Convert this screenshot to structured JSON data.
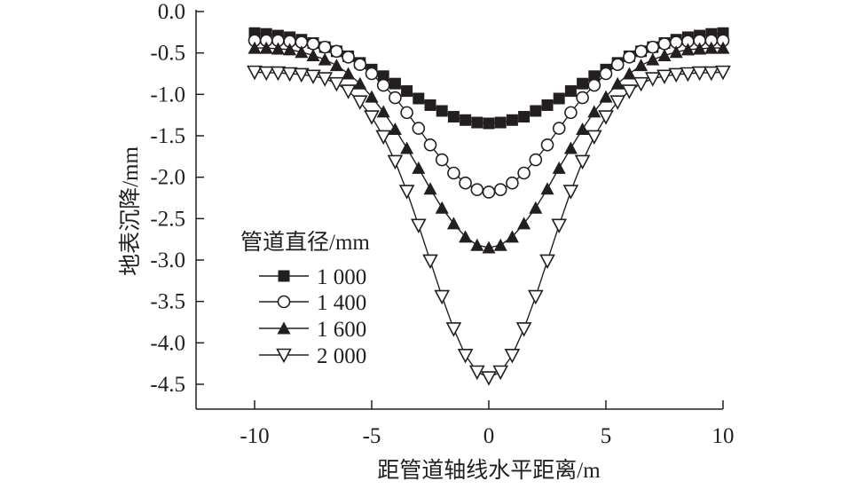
{
  "chart_data": {
    "type": "line",
    "title": "",
    "xlabel": "距管道轴线水平距离/m",
    "ylabel": "地表沉降/mm",
    "xlim": [
      -12.5,
      10
    ],
    "ylim": [
      -4.8,
      0
    ],
    "xticks": [
      -10,
      -5,
      0,
      5,
      10
    ],
    "xtick_labels": [
      "-10",
      "-5",
      "0",
      "5",
      "10"
    ],
    "yticks": [
      0,
      -0.5,
      -1,
      -1.5,
      -2,
      -2.5,
      -3,
      -3.5,
      -4,
      -4.5
    ],
    "ytick_labels": [
      "0.0",
      "-0.5",
      "-1.0",
      "-1.5",
      "-2.0",
      "-2.5",
      "-3.0",
      "-3.5",
      "-4.0",
      "-4.5"
    ],
    "grid": false,
    "legend": {
      "title": "管道直径/mm",
      "placement": "left-middle"
    },
    "x": [
      -10,
      -9.5,
      -9,
      -8.5,
      -8,
      -7.5,
      -7,
      -6.5,
      -6,
      -5.5,
      -5,
      -4.5,
      -4,
      -3.5,
      -3,
      -2.5,
      -2,
      -1.5,
      -1,
      -0.5,
      0,
      0.5,
      1,
      1.5,
      2,
      2.5,
      3,
      3.5,
      4,
      4.5,
      5,
      5.5,
      6,
      6.5,
      7,
      7.5,
      8,
      8.5,
      9,
      9.5,
      10
    ],
    "series": [
      {
        "name": "1 000",
        "marker": "square-filled",
        "values": [
          -0.26,
          -0.27,
          -0.29,
          -0.31,
          -0.34,
          -0.38,
          -0.43,
          -0.48,
          -0.54,
          -0.62,
          -0.7,
          -0.78,
          -0.87,
          -0.96,
          -1.05,
          -1.13,
          -1.2,
          -1.27,
          -1.31,
          -1.34,
          -1.35,
          -1.34,
          -1.31,
          -1.27,
          -1.2,
          -1.13,
          -1.05,
          -0.96,
          -0.87,
          -0.78,
          -0.7,
          -0.62,
          -0.54,
          -0.48,
          -0.43,
          -0.38,
          -0.34,
          -0.31,
          -0.29,
          -0.27,
          -0.26
        ]
      },
      {
        "name": "1 400",
        "marker": "circle-open",
        "values": [
          -0.35,
          -0.35,
          -0.35,
          -0.36,
          -0.37,
          -0.39,
          -0.43,
          -0.48,
          -0.55,
          -0.64,
          -0.75,
          -0.89,
          -1.04,
          -1.22,
          -1.41,
          -1.61,
          -1.79,
          -1.95,
          -2.07,
          -2.15,
          -2.18,
          -2.15,
          -2.07,
          -1.95,
          -1.79,
          -1.61,
          -1.41,
          -1.22,
          -1.04,
          -0.89,
          -0.75,
          -0.64,
          -0.55,
          -0.48,
          -0.43,
          -0.39,
          -0.37,
          -0.36,
          -0.35,
          -0.35,
          -0.35
        ]
      },
      {
        "name": "1 600",
        "marker": "triangle-up-filled",
        "values": [
          -0.44,
          -0.44,
          -0.45,
          -0.46,
          -0.49,
          -0.53,
          -0.58,
          -0.65,
          -0.75,
          -0.87,
          -1.03,
          -1.21,
          -1.42,
          -1.65,
          -1.89,
          -2.14,
          -2.37,
          -2.56,
          -2.72,
          -2.82,
          -2.85,
          -2.82,
          -2.72,
          -2.56,
          -2.37,
          -2.14,
          -1.89,
          -1.65,
          -1.42,
          -1.21,
          -1.03,
          -0.87,
          -0.75,
          -0.65,
          -0.58,
          -0.53,
          -0.49,
          -0.46,
          -0.45,
          -0.44,
          -0.44
        ]
      },
      {
        "name": "2 000",
        "marker": "triangle-down-open",
        "values": [
          -0.73,
          -0.74,
          -0.74,
          -0.75,
          -0.76,
          -0.78,
          -0.81,
          -0.87,
          -0.96,
          -1.09,
          -1.27,
          -1.51,
          -1.81,
          -2.17,
          -2.58,
          -3.01,
          -3.44,
          -3.83,
          -4.15,
          -4.35,
          -4.42,
          -4.35,
          -4.15,
          -3.83,
          -3.44,
          -3.01,
          -2.58,
          -2.17,
          -1.81,
          -1.51,
          -1.27,
          -1.09,
          -0.96,
          -0.87,
          -0.81,
          -0.78,
          -0.76,
          -0.75,
          -0.74,
          -0.74,
          -0.73
        ]
      }
    ]
  }
}
